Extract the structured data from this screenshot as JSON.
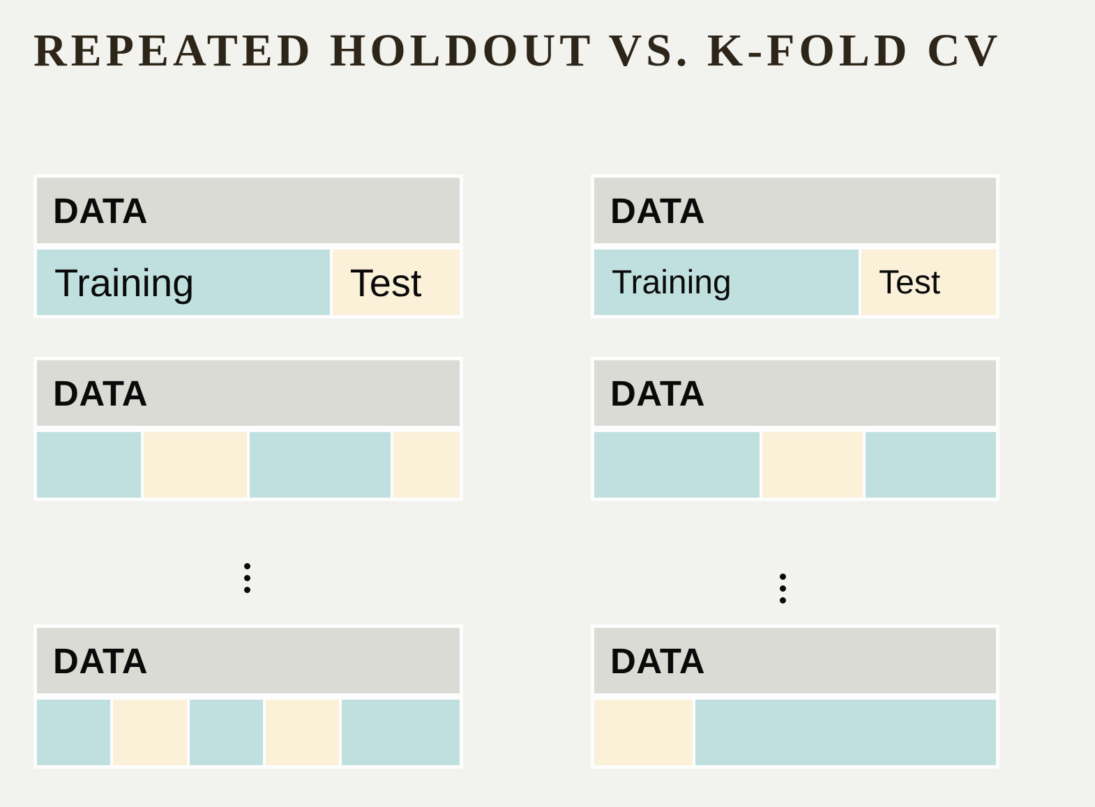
{
  "title": "REPEATED HOLDOUT VS. K-FOLD CV",
  "colors": {
    "background": "#f2f2ee",
    "block_border": "#fdfdfd",
    "data_bar": "#dbdbd5",
    "training_fill": "#bfe0df",
    "test_fill": "#fbf0d8",
    "title_text": "#2e2519",
    "label_text": "#0a0a0a"
  },
  "columns": {
    "left": {
      "method": "repeated-holdout",
      "ellipsis_icon": "vertical-ellipsis",
      "blocks": [
        {
          "header": "DATA",
          "segments": [
            {
              "type": "training",
              "label": "Training",
              "width_pct": 71.0
            },
            {
              "type": "test",
              "label": "Test",
              "width_pct": 28.3
            }
          ]
        },
        {
          "header": "DATA",
          "segments": [
            {
              "type": "training",
              "label": "",
              "width_pct": 24.8
            },
            {
              "type": "test",
              "label": "",
              "width_pct": 24.7
            },
            {
              "type": "training",
              "label": "",
              "width_pct": 35.4
            },
            {
              "type": "test",
              "label": "",
              "width_pct": 14.1
            }
          ]
        },
        {
          "header": "DATA",
          "segments": [
            {
              "type": "training",
              "label": "",
              "width_pct": 16.9
            },
            {
              "type": "test",
              "label": "",
              "width_pct": 17.0
            },
            {
              "type": "training",
              "label": "",
              "width_pct": 16.9
            },
            {
              "type": "test",
              "label": "",
              "width_pct": 16.9
            },
            {
              "type": "training",
              "label": "",
              "width_pct": 30.5
            }
          ]
        }
      ]
    },
    "right": {
      "method": "k-fold-cv",
      "ellipsis_icon": "vertical-ellipsis",
      "blocks": [
        {
          "header": "DATA",
          "segments": [
            {
              "type": "training",
              "label": "Training",
              "width_pct": 67.5
            },
            {
              "type": "test",
              "label": "Test",
              "width_pct": 32.0
            }
          ]
        },
        {
          "header": "DATA",
          "segments": [
            {
              "type": "training",
              "label": "",
              "width_pct": 42.5
            },
            {
              "type": "test",
              "label": "",
              "width_pct": 23.8
            },
            {
              "type": "training",
              "label": "",
              "width_pct": 32.6
            }
          ]
        },
        {
          "header": "DATA",
          "segments": [
            {
              "type": "test",
              "label": "",
              "width_pct": 22.2
            },
            {
              "type": "training",
              "label": "",
              "width_pct": 77.4
            }
          ]
        }
      ]
    }
  }
}
